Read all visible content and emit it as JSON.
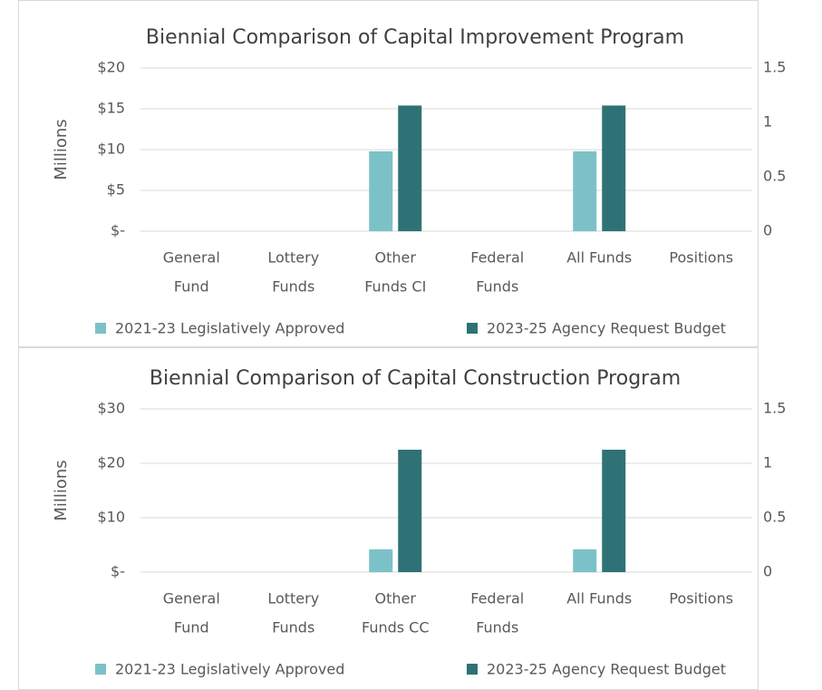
{
  "chart_data": [
    {
      "type": "bar",
      "title": "Biennial Comparison of Capital Improvement Program",
      "y_label": "Millions",
      "categories": [
        [
          "General",
          "Fund"
        ],
        [
          "Lottery",
          "Funds"
        ],
        [
          "Other",
          "Funds CI"
        ],
        [
          "Federal",
          "Funds"
        ],
        [
          "All Funds"
        ],
        [
          "Positions"
        ]
      ],
      "series": [
        {
          "name": "2021-23 Legislatively Approved",
          "color": "#7dc1c8",
          "values": [
            0,
            0,
            9.8,
            0,
            9.8,
            0
          ]
        },
        {
          "name": "2023-25 Agency Request Budget",
          "color": "#2e7275",
          "values": [
            0,
            0,
            15.4,
            0,
            15.4,
            0
          ]
        }
      ],
      "ylim": [
        0,
        20
      ],
      "yticks": [
        {
          "value": 0,
          "label": "$-"
        },
        {
          "value": 5,
          "label": "$5"
        },
        {
          "value": 10,
          "label": "$10"
        },
        {
          "value": 15,
          "label": "$15"
        },
        {
          "value": 20,
          "label": "$20"
        }
      ],
      "y2lim": [
        0,
        1.5
      ],
      "y2ticks": [
        0,
        0.5,
        1,
        1.5
      ],
      "grid": true,
      "legend": "bottom"
    },
    {
      "type": "bar",
      "title": "Biennial Comparison of Capital Construction Program",
      "y_label": "Millions",
      "categories": [
        [
          "General",
          "Fund"
        ],
        [
          "Lottery",
          "Funds"
        ],
        [
          "Other",
          "Funds CC"
        ],
        [
          "Federal",
          "Funds"
        ],
        [
          "All Funds"
        ],
        [
          "Positions"
        ]
      ],
      "series": [
        {
          "name": "2021-23 Legislatively Approved",
          "color": "#7dc1c8",
          "values": [
            0,
            0,
            4.2,
            0,
            4.2,
            0
          ]
        },
        {
          "name": "2023-25 Agency Request Budget",
          "color": "#2e7275",
          "values": [
            0,
            0,
            22.5,
            0,
            22.5,
            0
          ]
        }
      ],
      "ylim": [
        0,
        30
      ],
      "yticks": [
        {
          "value": 0,
          "label": "$-"
        },
        {
          "value": 10,
          "label": "$10"
        },
        {
          "value": 20,
          "label": "$20"
        },
        {
          "value": 30,
          "label": "$30"
        }
      ],
      "y2lim": [
        0,
        1.5
      ],
      "y2ticks": [
        0,
        0.5,
        1,
        1.5
      ],
      "grid": true,
      "legend": "bottom"
    }
  ]
}
